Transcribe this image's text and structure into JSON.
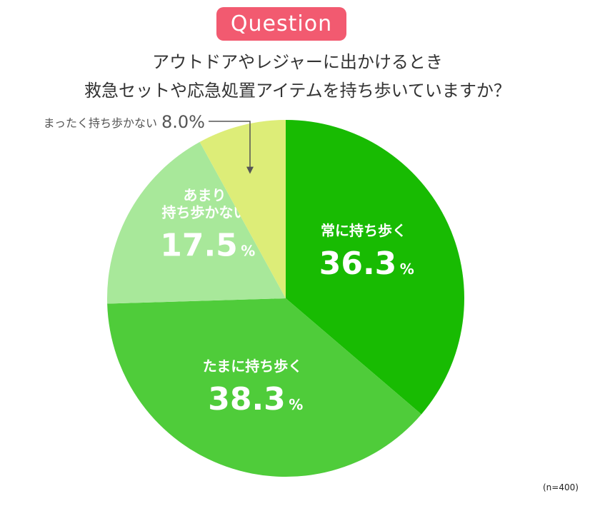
{
  "header": {
    "badge": "Question",
    "title_line1": "アウトドアやレジャーに出かけるとき",
    "title_line2": "救急セットや応急処置アイテムを持ち歩いていますか？"
  },
  "note": "(n=400)",
  "colors": {
    "badge": "#f25a70",
    "always": "#18bb02",
    "sometimes": "#4fcc3a",
    "rarely": "#a8e89a",
    "never": "#dded78",
    "label_text": "#ffffff",
    "callout_text": "#555555"
  },
  "chart_data": {
    "type": "pie",
    "title": "アウトドアやレジャーに出かけるとき 救急セットや応急処置アイテムを持ち歩いていますか？",
    "n": 400,
    "slices": [
      {
        "label": "常に持ち歩く",
        "value": 36.3,
        "value_text": "36.3",
        "unit": "%",
        "color": "#18bb02"
      },
      {
        "label": "たまに持ち歩く",
        "value": 38.3,
        "value_text": "38.3",
        "unit": "%",
        "color": "#4fcc3a"
      },
      {
        "label": "あまり\n持ち歩かない",
        "value": 17.5,
        "value_text": "17.5",
        "unit": "%",
        "color": "#a8e89a"
      },
      {
        "label": "まったく持ち歩かない",
        "value": 8.0,
        "value_text": "8.0%",
        "unit": "",
        "color": "#dded78"
      }
    ]
  }
}
